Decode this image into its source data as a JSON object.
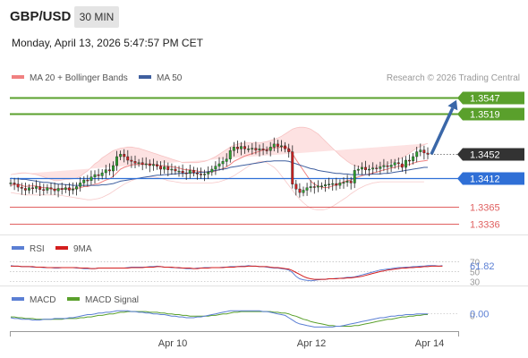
{
  "header": {
    "symbol": "GBP/USD",
    "timeframe": "30 MIN",
    "datetime": "Monday, April 13, 2026 5:47:57 PM CET"
  },
  "colors": {
    "bollinger": "#f08080",
    "ma50": "#3f5f9f",
    "resistance": "#5aa02c",
    "current": "#333333",
    "pivot": "#2f6fd6",
    "support": "#e06060",
    "arrow": "#3a67a8",
    "rsi": "#5b7fd4",
    "rsi_ma": "#d41e1e",
    "macd": "#5b7fd4",
    "macd_signal": "#5aa02c"
  },
  "chart_data": [
    {
      "type": "candlestick",
      "legend": [
        {
          "name": "MA 20 + Bollinger Bands",
          "color": "#f08080"
        },
        {
          "name": "MA 50",
          "color": "#3f5f9f"
        }
      ],
      "watermark": "Research © 2026 Trading Central",
      "x_tick_labels": [
        "Apr 10",
        "Apr 12",
        "Apr 14"
      ],
      "ylim": [
        1.3318,
        1.3572
      ],
      "levels": [
        {
          "label": "1.3547",
          "value": 1.3547,
          "kind": "resistance"
        },
        {
          "label": "1.3519",
          "value": 1.3519,
          "kind": "resistance"
        },
        {
          "label": "1.3452",
          "value": 1.3452,
          "kind": "current"
        },
        {
          "label": "1.3412",
          "value": 1.3412,
          "kind": "pivot"
        },
        {
          "label": "1.3365",
          "value": 1.3365,
          "kind": "support"
        },
        {
          "label": "1.3336",
          "value": 1.3336,
          "kind": "support"
        }
      ],
      "closes": [
        1.3404,
        1.3402,
        1.3397,
        1.3395,
        1.3392,
        1.3396,
        1.3395,
        1.3398,
        1.3393,
        1.3392,
        1.3396,
        1.3394,
        1.3391,
        1.3395,
        1.3393,
        1.3396,
        1.3392,
        1.3394,
        1.3398,
        1.3404,
        1.3409,
        1.3408,
        1.3414,
        1.3418,
        1.3416,
        1.3421,
        1.3426,
        1.3424,
        1.3433,
        1.3448,
        1.3452,
        1.3448,
        1.3442,
        1.344,
        1.3437,
        1.3438,
        1.3435,
        1.3436,
        1.3433,
        1.3435,
        1.3432,
        1.3427,
        1.3431,
        1.3426,
        1.3427,
        1.3424,
        1.3424,
        1.3421,
        1.342,
        1.3425,
        1.3421,
        1.3419,
        1.3418,
        1.3419,
        1.3422,
        1.3427,
        1.3432,
        1.3436,
        1.344,
        1.3444,
        1.3458,
        1.3464,
        1.3461,
        1.3465,
        1.3461,
        1.3461,
        1.3462,
        1.3459,
        1.3461,
        1.3459,
        1.3458,
        1.3464,
        1.3469,
        1.3465,
        1.3466,
        1.3461,
        1.3456,
        1.3402,
        1.3394,
        1.3388,
        1.3392,
        1.3396,
        1.3398,
        1.3397,
        1.3399,
        1.3399,
        1.3401,
        1.3402,
        1.3403,
        1.34,
        1.3404,
        1.3405,
        1.3407,
        1.3404,
        1.3425,
        1.3427,
        1.343,
        1.3426,
        1.3427,
        1.3429,
        1.3428,
        1.3431,
        1.3433,
        1.3431,
        1.3434,
        1.3438,
        1.3436,
        1.343,
        1.3442,
        1.3441,
        1.3448,
        1.3456,
        1.3459,
        1.3454,
        1.3452
      ],
      "ma20": [
        1.34,
        1.3401,
        1.3402,
        1.34,
        1.3398,
        1.3399,
        1.3399,
        1.3399,
        1.3397,
        1.3396,
        1.3396,
        1.3395,
        1.3393,
        1.3394,
        1.3394,
        1.3395,
        1.3394,
        1.3394,
        1.3395,
        1.3396,
        1.3398,
        1.3398,
        1.34,
        1.3402,
        1.3403,
        1.3406,
        1.3409,
        1.3411,
        1.3415,
        1.3421,
        1.3427,
        1.343,
        1.3432,
        1.3434,
        1.3435,
        1.3435,
        1.3435,
        1.3435,
        1.3435,
        1.3435,
        1.3434,
        1.3433,
        1.3433,
        1.3432,
        1.3431,
        1.343,
        1.3429,
        1.3427,
        1.3426,
        1.3426,
        1.3425,
        1.3424,
        1.3423,
        1.3422,
        1.3422,
        1.3423,
        1.3424,
        1.3426,
        1.3428,
        1.3431,
        1.3435,
        1.344,
        1.3443,
        1.3446,
        1.3449,
        1.3451,
        1.3453,
        1.3455,
        1.3457,
        1.3459,
        1.346,
        1.3462,
        1.3463,
        1.3463,
        1.3464,
        1.3464,
        1.3462,
        1.3453,
        1.3443,
        1.3434,
        1.3425,
        1.3416,
        1.3407,
        1.3402,
        1.3399,
        1.3397,
        1.3396,
        1.3397,
        1.3399,
        1.3401,
        1.3403,
        1.3406,
        1.3408,
        1.3409,
        1.3412,
        1.3414,
        1.3416,
        1.3418,
        1.3419,
        1.3421,
        1.3422,
        1.3424,
        1.3426,
        1.3427,
        1.3429,
        1.343,
        1.3432,
        1.3433,
        1.3434,
        1.3435,
        1.3437,
        1.3439,
        1.344,
        1.3441,
        1.3442
      ],
      "ma50": [
        1.3412,
        1.3411,
        1.3411,
        1.341,
        1.341,
        1.3409,
        1.3408,
        1.3407,
        1.3406,
        1.3405,
        1.3405,
        1.3404,
        1.3403,
        1.3402,
        1.3402,
        1.3401,
        1.3401,
        1.34,
        1.34,
        1.34,
        1.34,
        1.34,
        1.34,
        1.34,
        1.34,
        1.3401,
        1.3401,
        1.3402,
        1.3403,
        1.3405,
        1.3407,
        1.3408,
        1.3409,
        1.341,
        1.3411,
        1.3412,
        1.3413,
        1.3414,
        1.3415,
        1.3416,
        1.3417,
        1.3417,
        1.3418,
        1.3418,
        1.3419,
        1.3419,
        1.342,
        1.342,
        1.342,
        1.3421,
        1.3421,
        1.3421,
        1.3422,
        1.3422,
        1.3423,
        1.3424,
        1.3425,
        1.3426,
        1.3427,
        1.3428,
        1.343,
        1.3431,
        1.3432,
        1.3433,
        1.3434,
        1.3435,
        1.3436,
        1.3437,
        1.3438,
        1.3439,
        1.344,
        1.344,
        1.3441,
        1.3441,
        1.3441,
        1.3441,
        1.344,
        1.3438,
        1.3436,
        1.3434,
        1.3432,
        1.343,
        1.3428,
        1.3427,
        1.3425,
        1.3424,
        1.3423,
        1.3422,
        1.3421,
        1.342,
        1.342,
        1.3419,
        1.3419,
        1.3418,
        1.3418,
        1.3418,
        1.3418,
        1.3418,
        1.3418,
        1.3419,
        1.3419,
        1.3419,
        1.342,
        1.342,
        1.3421,
        1.3422,
        1.3423,
        1.3424,
        1.3425,
        1.3426,
        1.3427,
        1.3428,
        1.3429,
        1.343,
        1.343
      ],
      "bb_upper": [
        1.3418,
        1.3419,
        1.342,
        1.3421,
        1.3421,
        1.342,
        1.3419,
        1.3418,
        1.3416,
        1.3414,
        1.3412,
        1.341,
        1.3408,
        1.3408,
        1.3409,
        1.341,
        1.341,
        1.3411,
        1.3412,
        1.3415,
        1.342,
        1.3424,
        1.343,
        1.3436,
        1.344,
        1.3446,
        1.345,
        1.3454,
        1.3458,
        1.346,
        1.3462,
        1.3463,
        1.3464,
        1.3464,
        1.3463,
        1.3462,
        1.346,
        1.3458,
        1.3456,
        1.3454,
        1.3452,
        1.345,
        1.3448,
        1.3446,
        1.3444,
        1.3442,
        1.344,
        1.3438,
        1.3438,
        1.3438,
        1.3438,
        1.3438,
        1.3439,
        1.344,
        1.3442,
        1.3445,
        1.3448,
        1.3452,
        1.3456,
        1.346,
        1.3464,
        1.3467,
        1.3469,
        1.347,
        1.3471,
        1.3471,
        1.3471,
        1.3471,
        1.3471,
        1.3472,
        1.3473,
        1.3475,
        1.3477,
        1.3479,
        1.3482,
        1.3486,
        1.349,
        1.3494,
        1.3496,
        1.3497,
        1.3497,
        1.3496,
        1.3494,
        1.349,
        1.3486,
        1.348,
        1.3474,
        1.3468,
        1.3462,
        1.3456,
        1.345,
        1.3445,
        1.344,
        1.3436,
        1.3433,
        1.3431,
        1.343,
        1.343,
        1.343,
        1.343,
        1.3431,
        1.3432,
        1.3434,
        1.3436,
        1.3438,
        1.344,
        1.3443,
        1.3446,
        1.345,
        1.3454,
        1.3458,
        1.3462,
        1.3465,
        1.3468,
        1.347
      ],
      "bb_lower": [
        1.3388,
        1.3387,
        1.3386,
        1.3385,
        1.3384,
        1.3384,
        1.3384,
        1.3384,
        1.3384,
        1.3384,
        1.3384,
        1.3384,
        1.3384,
        1.3384,
        1.3383,
        1.3382,
        1.3381,
        1.338,
        1.3379,
        1.3378,
        1.3377,
        1.3376,
        1.3376,
        1.3377,
        1.3378,
        1.338,
        1.3383,
        1.3386,
        1.339,
        1.3394,
        1.3398,
        1.3402,
        1.3405,
        1.3408,
        1.341,
        1.3412,
        1.3413,
        1.3414,
        1.3414,
        1.3414,
        1.3413,
        1.3412,
        1.341,
        1.3408,
        1.3407,
        1.3406,
        1.3405,
        1.3404,
        1.3404,
        1.3404,
        1.3404,
        1.3404,
        1.3404,
        1.3404,
        1.3404,
        1.3404,
        1.3405,
        1.3406,
        1.3408,
        1.341,
        1.3413,
        1.3416,
        1.342,
        1.3424,
        1.3428,
        1.3432,
        1.3436,
        1.3438,
        1.344,
        1.344,
        1.3438,
        1.3434,
        1.343,
        1.3424,
        1.3416,
        1.3408,
        1.34,
        1.3392,
        1.3384,
        1.3377,
        1.3371,
        1.3366,
        1.3362,
        1.336,
        1.3359,
        1.3359,
        1.336,
        1.3362,
        1.3365,
        1.3369,
        1.3373,
        1.3377,
        1.3381,
        1.3386,
        1.339,
        1.3394,
        1.3397,
        1.34,
        1.3402,
        1.3404,
        1.3405,
        1.3406,
        1.3406,
        1.3406,
        1.3406,
        1.3406,
        1.3406,
        1.3406,
        1.3406,
        1.3406,
        1.3406,
        1.3406,
        1.3406,
        1.3406
      ]
    },
    {
      "type": "line",
      "legend": [
        {
          "name": "RSI",
          "color": "#5b7fd4"
        },
        {
          "name": "9MA",
          "color": "#d41e1e"
        }
      ],
      "ylim": [
        25,
        80
      ],
      "guide_levels": [
        70,
        50,
        30
      ],
      "tick_labels": [
        "70",
        "50",
        "30"
      ],
      "value_label": "61.82",
      "rsi": [
        62,
        61,
        61,
        60,
        60,
        60,
        59,
        59,
        59,
        58,
        58,
        58,
        57,
        57,
        58,
        58,
        58,
        58,
        57,
        57,
        56,
        56,
        56,
        56,
        57,
        57,
        57,
        57,
        57,
        57,
        57,
        57,
        58,
        59,
        59,
        59,
        59,
        59,
        60,
        60,
        61,
        60,
        59,
        59,
        58,
        58,
        57,
        57,
        56,
        56,
        56,
        57,
        57,
        58,
        58,
        58,
        58,
        58,
        59,
        59,
        60,
        60,
        60,
        61,
        61,
        62,
        61,
        61,
        60,
        60,
        59,
        58,
        57,
        57,
        56,
        55,
        53,
        48,
        40,
        35,
        33,
        32,
        31,
        32,
        33,
        34,
        34,
        35,
        35,
        36,
        36,
        37,
        38,
        38,
        39,
        41,
        43,
        45,
        47,
        49,
        51,
        53,
        54,
        55,
        56,
        57,
        58,
        58,
        59,
        59,
        60,
        60,
        61,
        61,
        62,
        62,
        62,
        61,
        62
      ],
      "rsi_ma": [
        61,
        61,
        61,
        60,
        60,
        60,
        60,
        59,
        59,
        59,
        58,
        58,
        58,
        58,
        58,
        58,
        58,
        58,
        58,
        57,
        57,
        57,
        56,
        56,
        57,
        57,
        57,
        57,
        57,
        57,
        57,
        57,
        57,
        58,
        58,
        58,
        58,
        59,
        59,
        59,
        60,
        60,
        59,
        59,
        59,
        58,
        58,
        57,
        57,
        57,
        56,
        56,
        57,
        57,
        57,
        58,
        58,
        58,
        58,
        59,
        59,
        59,
        60,
        60,
        60,
        61,
        61,
        61,
        60,
        60,
        60,
        59,
        58,
        58,
        57,
        56,
        55,
        52,
        48,
        44,
        40,
        37,
        35,
        34,
        34,
        34,
        34,
        35,
        35,
        35,
        36,
        36,
        37,
        37,
        38,
        39,
        40,
        42,
        44,
        46,
        48,
        50,
        51,
        53,
        54,
        55,
        56,
        57,
        57,
        58,
        58,
        59,
        59,
        60,
        60,
        61,
        61,
        61,
        61
      ]
    },
    {
      "type": "line",
      "legend": [
        {
          "name": "MACD",
          "color": "#5b7fd4"
        },
        {
          "name": "MACD Signal",
          "color": "#5aa02c"
        }
      ],
      "ylim": [
        -0.0018,
        0.0012
      ],
      "zero_label": "0",
      "value_label": "0.00",
      "macd": [
        -0.0003,
        -0.0004,
        -0.0004,
        -0.0005,
        -0.0005,
        -0.0005,
        -0.0006,
        -0.0006,
        -0.0006,
        -0.0005,
        -0.0005,
        -0.0005,
        -0.0004,
        -0.0004,
        -0.0004,
        -0.0004,
        -0.0003,
        -0.0003,
        -0.0002,
        -0.0001,
        0,
        0.0001,
        0.0001,
        0.0002,
        0.0003,
        0.0003,
        0.0004,
        0.0004,
        0.0005,
        0.0006,
        0.0006,
        0.0006,
        0.0006,
        0.0005,
        0.0005,
        0.0004,
        0.0004,
        0.0003,
        0.0003,
        0.0002,
        0.0002,
        0.0001,
        0.0001,
        0,
        -0.0001,
        -0.0001,
        -0.0002,
        -0.0002,
        -0.0003,
        -0.0003,
        -0.0003,
        -0.0002,
        -0.0002,
        -0.0001,
        0,
        0.0001,
        0.0002,
        0.0003,
        0.0004,
        0.0005,
        0.0006,
        0.0006,
        0.0006,
        0.0006,
        0.0006,
        0.0006,
        0.0006,
        0.0006,
        0.0006,
        0.0005,
        0.0005,
        0.0004,
        0.0003,
        0.0002,
        0.0001,
        0,
        -0.0003,
        -0.0006,
        -0.0009,
        -0.0011,
        -0.0012,
        -0.0013,
        -0.0014,
        -0.0015,
        -0.0015,
        -0.0015,
        -0.0015,
        -0.0015,
        -0.0015,
        -0.0014,
        -0.0014,
        -0.0013,
        -0.0012,
        -0.0011,
        -0.001,
        -0.0009,
        -0.0008,
        -0.0007,
        -0.0006,
        -0.0005,
        -0.0004,
        -0.0003,
        -0.0003,
        -0.0002,
        -0.0001,
        -0.0001,
        0,
        0,
        0.0001,
        0.0001,
        0.0001,
        0.0002,
        0.0002,
        0.0002,
        0.0002
      ],
      "signal": [
        -0.0002,
        -0.0002,
        -0.0003,
        -0.0003,
        -0.0004,
        -0.0004,
        -0.0004,
        -0.0005,
        -0.0005,
        -0.0005,
        -0.0005,
        -0.0005,
        -0.0005,
        -0.0005,
        -0.0005,
        -0.0004,
        -0.0004,
        -0.0004,
        -0.0004,
        -0.0003,
        -0.0003,
        -0.0002,
        -0.0002,
        -0.0001,
        0,
        0,
        0.0001,
        0.0002,
        0.0002,
        0.0003,
        0.0004,
        0.0004,
        0.0005,
        0.0005,
        0.0005,
        0.0005,
        0.0005,
        0.0005,
        0.0004,
        0.0004,
        0.0004,
        0.0003,
        0.0003,
        0.0002,
        0.0002,
        0.0001,
        0.0001,
        0,
        0,
        -0.0001,
        -0.0001,
        -0.0001,
        -0.0001,
        -0.0001,
        -0.0001,
        0,
        0,
        0.0001,
        0.0002,
        0.0002,
        0.0003,
        0.0004,
        0.0004,
        0.0005,
        0.0005,
        0.0005,
        0.0005,
        0.0005,
        0.0005,
        0.0005,
        0.0005,
        0.0005,
        0.0004,
        0.0004,
        0.0003,
        0.0003,
        0.0002,
        0,
        -0.0001,
        -0.0003,
        -0.0005,
        -0.0006,
        -0.0008,
        -0.0009,
        -0.001,
        -0.0011,
        -0.0012,
        -0.0013,
        -0.0013,
        -0.0014,
        -0.0014,
        -0.0014,
        -0.0014,
        -0.0014,
        -0.0013,
        -0.0013,
        -0.0012,
        -0.0011,
        -0.001,
        -0.0009,
        -0.0008,
        -0.0007,
        -0.0006,
        -0.0005,
        -0.0005,
        -0.0004,
        -0.0003,
        -0.0002,
        -0.0002,
        -0.0001,
        -0.0001,
        0,
        0,
        0.0001,
        0.0001
      ]
    }
  ]
}
